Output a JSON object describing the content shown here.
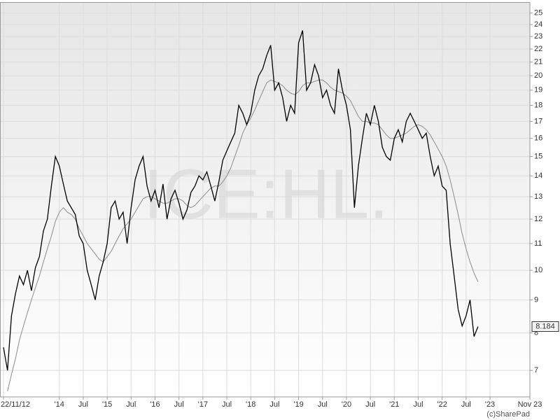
{
  "chart_data": {
    "type": "line",
    "watermark": "ICE:HL.",
    "credit": "(c)SharePad",
    "log_scale": true,
    "grid": true,
    "last_value": 8.184,
    "x": [
      "2012-11",
      "2012-12",
      "2013-01",
      "2013-02",
      "2013-03",
      "2013-04",
      "2013-05",
      "2013-06",
      "2013-07",
      "2013-08",
      "2013-09",
      "2013-10",
      "2013-11",
      "2013-12",
      "2014-01",
      "2014-02",
      "2014-03",
      "2014-04",
      "2014-05",
      "2014-06",
      "2014-07",
      "2014-08",
      "2014-09",
      "2014-10",
      "2014-11",
      "2014-12",
      "2015-01",
      "2015-02",
      "2015-03",
      "2015-04",
      "2015-05",
      "2015-06",
      "2015-07",
      "2015-08",
      "2015-09",
      "2015-10",
      "2015-11",
      "2015-12",
      "2016-01",
      "2016-02",
      "2016-03",
      "2016-04",
      "2016-05",
      "2016-06",
      "2016-07",
      "2016-08",
      "2016-09",
      "2016-10",
      "2016-11",
      "2016-12",
      "2017-01",
      "2017-02",
      "2017-03",
      "2017-04",
      "2017-05",
      "2017-06",
      "2017-07",
      "2017-08",
      "2017-09",
      "2017-10",
      "2017-11",
      "2017-12",
      "2018-01",
      "2018-02",
      "2018-03",
      "2018-04",
      "2018-05",
      "2018-06",
      "2018-07",
      "2018-08",
      "2018-09",
      "2018-10",
      "2018-11",
      "2018-12",
      "2019-01",
      "2019-02",
      "2019-03",
      "2019-04",
      "2019-05",
      "2019-06",
      "2019-07",
      "2019-08",
      "2019-09",
      "2019-10",
      "2019-11",
      "2019-12",
      "2020-01",
      "2020-02",
      "2020-03",
      "2020-04",
      "2020-05",
      "2020-06",
      "2020-07",
      "2020-08",
      "2020-09",
      "2020-10",
      "2020-11",
      "2020-12",
      "2021-01",
      "2021-02",
      "2021-03",
      "2021-04",
      "2021-05",
      "2021-06",
      "2021-07",
      "2021-08",
      "2021-09",
      "2021-10",
      "2021-11",
      "2021-12",
      "2022-01",
      "2022-02",
      "2022-03",
      "2022-04",
      "2022-05",
      "2022-06",
      "2022-07",
      "2022-08",
      "2022-09",
      "2022-10"
    ],
    "series": [
      {
        "color": "#000000",
        "values": [
          7.6,
          7.0,
          8.5,
          9.2,
          9.8,
          9.5,
          10.0,
          9.3,
          10.1,
          10.5,
          11.5,
          12.0,
          13.5,
          15.0,
          14.5,
          13.6,
          12.8,
          12.5,
          12.2,
          11.3,
          11.0,
          10.0,
          9.5,
          9.0,
          9.8,
          10.3,
          11.0,
          12.5,
          12.8,
          12.0,
          12.3,
          11.0,
          12.5,
          13.8,
          14.5,
          15.0,
          13.5,
          12.8,
          13.3,
          12.5,
          13.6,
          12.0,
          12.9,
          13.3,
          12.7,
          12.0,
          12.4,
          13.2,
          13.5,
          14.0,
          13.8,
          14.2,
          13.5,
          12.8,
          13.7,
          14.8,
          15.3,
          15.8,
          16.3,
          18.0,
          17.5,
          16.8,
          17.5,
          19.0,
          20.0,
          20.5,
          21.5,
          22.3,
          19.0,
          19.5,
          18.5,
          17.0,
          18.0,
          17.5,
          22.5,
          23.5,
          19.0,
          19.5,
          20.8,
          20.0,
          18.5,
          19.0,
          18.0,
          17.5,
          20.5,
          19.0,
          18.0,
          16.5,
          12.5,
          14.5,
          16.0,
          17.5,
          16.8,
          18.0,
          17.0,
          15.5,
          15.0,
          14.8,
          16.0,
          16.5,
          15.8,
          17.0,
          17.5,
          17.0,
          16.5,
          16.0,
          16.3,
          15.0,
          14.0,
          14.5,
          13.5,
          13.3,
          11.0,
          9.8,
          8.7,
          8.2,
          8.5,
          9.0,
          7.9,
          8.184
        ]
      },
      {
        "color": "#8c8c8c",
        "values": [
          null,
          6.5,
          6.9,
          7.3,
          7.8,
          8.2,
          8.6,
          9.0,
          9.4,
          9.8,
          10.3,
          10.8,
          11.3,
          11.9,
          12.3,
          12.5,
          12.3,
          12.2,
          12.0,
          11.6,
          11.3,
          11.0,
          10.8,
          10.6,
          10.4,
          10.3,
          10.5,
          10.7,
          11.0,
          11.3,
          11.6,
          11.8,
          12.0,
          12.3,
          12.6,
          12.9,
          13.0,
          13.0,
          12.9,
          12.8,
          12.7,
          12.7,
          12.8,
          12.9,
          12.9,
          12.8,
          12.6,
          12.5,
          12.6,
          12.8,
          13.0,
          13.2,
          13.4,
          13.5,
          13.5,
          13.7,
          14.0,
          14.4,
          15.0,
          15.6,
          16.3,
          16.8,
          17.2,
          17.7,
          18.3,
          18.9,
          19.5,
          19.7,
          19.6,
          19.5,
          19.3,
          19.0,
          18.8,
          18.7,
          18.9,
          19.3,
          19.5,
          19.5,
          19.6,
          19.7,
          19.7,
          19.5,
          19.2,
          19.0,
          18.9,
          18.8,
          18.6,
          18.3,
          17.8,
          17.3,
          17.0,
          17.0,
          16.9,
          16.9,
          16.8,
          16.5,
          16.2,
          16.0,
          16.0,
          16.1,
          16.2,
          16.3,
          16.5,
          16.7,
          16.8,
          16.7,
          16.5,
          16.2,
          15.8,
          15.4,
          15.0,
          14.5,
          13.8,
          13.0,
          12.2,
          11.4,
          10.8,
          10.3,
          9.9,
          9.6
        ]
      }
    ],
    "xlim": [
      "2012-11",
      "2023-11"
    ],
    "xticks": [
      {
        "value": "2012-11",
        "label": "22/11/12"
      },
      {
        "value": "2014-01",
        "label": "'14"
      },
      {
        "value": "2014-07",
        "label": "Jul"
      },
      {
        "value": "2015-01",
        "label": "'15"
      },
      {
        "value": "2015-07",
        "label": "Jul"
      },
      {
        "value": "2016-01",
        "label": "'16"
      },
      {
        "value": "2016-07",
        "label": "Jul"
      },
      {
        "value": "2017-01",
        "label": "'17"
      },
      {
        "value": "2017-07",
        "label": "Jul"
      },
      {
        "value": "2018-01",
        "label": "'18"
      },
      {
        "value": "2018-07",
        "label": "Jul"
      },
      {
        "value": "2019-01",
        "label": "'19"
      },
      {
        "value": "2019-07",
        "label": "Jul"
      },
      {
        "value": "2020-01",
        "label": "'20"
      },
      {
        "value": "2020-07",
        "label": "Jul"
      },
      {
        "value": "2021-01",
        "label": "'21"
      },
      {
        "value": "2021-07",
        "label": "Jul"
      },
      {
        "value": "2022-01",
        "label": "'22"
      },
      {
        "value": "2022-07",
        "label": "Jul"
      },
      {
        "value": "2023-01",
        "label": "'23"
      },
      {
        "value": "2023-11",
        "label": "Nov 23"
      }
    ],
    "ylim": [
      6.37,
      26.0
    ],
    "yticks": [
      7,
      8,
      9,
      10,
      11,
      12,
      13,
      14,
      15,
      16,
      17,
      18,
      19,
      20,
      21,
      22,
      23,
      24,
      25
    ]
  }
}
